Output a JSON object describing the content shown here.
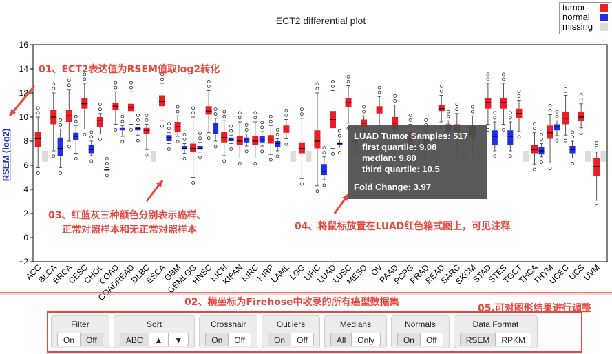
{
  "chart_data": {
    "type": "box",
    "title": "ECT2 differential plot",
    "ylabel": "RSEM (log2)",
    "xlabel": "",
    "ylim": [
      -2,
      16
    ],
    "yticks": [
      -2,
      0,
      2,
      4,
      6,
      8,
      10,
      12,
      14,
      16
    ],
    "legend_position": "top-right",
    "legend": [
      {
        "label": "tumor",
        "color": "#ee1c24"
      },
      {
        "label": "normal",
        "color": "#1f2ee6"
      },
      {
        "label": "missing",
        "color": "#dcdcdc"
      }
    ],
    "categories": [
      {
        "name": "ACC",
        "tumor": [
          5.8,
          7.5,
          8.2,
          8.8,
          10.0
        ],
        "normal": null
      },
      {
        "name": "BLCA",
        "tumor": [
          7.2,
          9.4,
          10.0,
          10.6,
          12.0
        ],
        "normal": [
          5.8,
          6.8,
          7.4,
          8.3,
          9.0
        ]
      },
      {
        "name": "BRCA",
        "tumor": [
          8.0,
          9.6,
          10.1,
          10.6,
          12.3
        ],
        "normal": [
          7.0,
          8.1,
          8.4,
          8.7,
          9.3
        ]
      },
      {
        "name": "CESC",
        "tumor": [
          9.0,
          10.7,
          11.1,
          11.6,
          12.8
        ],
        "normal": [
          6.8,
          7.0,
          7.3,
          7.7,
          8.0
        ]
      },
      {
        "name": "CHOL",
        "tumor": [
          8.6,
          9.2,
          9.7,
          10.0,
          10.3
        ],
        "normal": [
          5.6,
          5.6,
          5.6,
          5.7,
          5.8
        ]
      },
      {
        "name": "COAD",
        "tumor": [
          9.4,
          10.6,
          10.9,
          11.2,
          12.1
        ],
        "normal": [
          8.4,
          8.9,
          9.0,
          9.1,
          9.3
        ]
      },
      {
        "name": "COADREAD",
        "tumor": [
          9.4,
          10.5,
          10.8,
          11.1,
          12.1
        ],
        "normal": [
          8.5,
          8.9,
          9.05,
          9.2,
          9.4
        ]
      },
      {
        "name": "DLBC",
        "tumor": [
          7.3,
          8.6,
          8.9,
          9.1,
          9.4
        ],
        "normal": null
      },
      {
        "name": "ESCA",
        "tumor": [
          9.7,
          10.9,
          11.3,
          11.8,
          12.8
        ],
        "normal": [
          7.8,
          8.0,
          8.3,
          8.5,
          8.7
        ]
      },
      {
        "name": "GBM",
        "tumor": [
          8.4,
          8.8,
          9.2,
          9.6,
          10.1
        ],
        "normal": [
          7.0,
          7.3,
          7.4,
          7.6,
          7.8
        ]
      },
      {
        "name": "GBMLGG",
        "tumor": [
          5.0,
          7.1,
          7.4,
          7.8,
          10.0
        ],
        "normal": [
          7.1,
          7.3,
          7.4,
          7.6,
          7.9
        ]
      },
      {
        "name": "HNSC",
        "tumor": [
          8.7,
          10.2,
          10.5,
          10.9,
          12.2
        ],
        "normal": [
          8.0,
          8.6,
          9.0,
          9.5,
          9.9
        ]
      },
      {
        "name": "KICH",
        "tumor": [
          6.8,
          7.9,
          8.3,
          8.8,
          9.7
        ],
        "normal": [
          7.8,
          8.0,
          8.1,
          8.3,
          8.5
        ]
      },
      {
        "name": "KIPAN",
        "tumor": [
          6.6,
          7.7,
          8.0,
          8.4,
          9.6
        ],
        "normal": [
          7.6,
          7.9,
          8.1,
          8.3,
          8.6
        ]
      },
      {
        "name": "KIRC",
        "tumor": [
          6.6,
          7.7,
          8.0,
          8.4,
          9.6
        ],
        "normal": [
          7.6,
          7.9,
          8.1,
          8.4,
          8.8
        ]
      },
      {
        "name": "KIRP",
        "tumor": [
          6.9,
          7.8,
          8.1,
          8.5,
          9.3
        ],
        "normal": [
          7.2,
          7.5,
          7.8,
          8.0,
          8.2
        ]
      },
      {
        "name": "LAML",
        "tumor": [
          8.2,
          8.7,
          9.0,
          9.3,
          9.8
        ],
        "normal": null
      },
      {
        "name": "LGG",
        "tumor": [
          4.9,
          7.0,
          7.4,
          7.9,
          9.9
        ],
        "normal": null
      },
      {
        "name": "LIHC",
        "tumor": [
          4.3,
          7.4,
          8.0,
          8.9,
          12.0
        ],
        "normal": [
          4.8,
          5.2,
          5.5,
          6.1,
          6.7
        ]
      },
      {
        "name": "LUAD",
        "tumor": [
          7.4,
          9.08,
          9.8,
          10.5,
          12.2
        ],
        "normal": [
          7.5,
          7.7,
          7.8,
          7.9,
          8.1
        ]
      },
      {
        "name": "LUSC",
        "tumor": [
          9.5,
          10.8,
          11.2,
          11.6,
          12.6
        ],
        "normal": [
          7.6,
          7.9,
          8.0,
          8.1,
          8.3
        ]
      },
      {
        "name": "MESO",
        "tumor": [
          8.6,
          9.2,
          9.5,
          9.8,
          10.1
        ],
        "normal": null
      },
      {
        "name": "OV",
        "tumor": [
          9.3,
          10.3,
          10.6,
          10.9,
          11.7
        ],
        "normal": null
      },
      {
        "name": "PAAD",
        "tumor": [
          7.0,
          8.9,
          9.5,
          10.0,
          11.0
        ],
        "normal": null
      },
      {
        "name": "PCPG",
        "tumor": [
          6.4,
          7.7,
          8.2,
          8.8,
          9.4
        ],
        "normal": null
      },
      {
        "name": "PRAD",
        "tumor": [
          6.5,
          7.6,
          8.0,
          8.3,
          9.0
        ],
        "normal": null
      },
      {
        "name": "READ",
        "tumor": [
          9.6,
          10.5,
          10.7,
          11.0,
          11.8
        ],
        "normal": [
          8.6,
          8.8,
          9.1,
          9.4,
          9.7
        ]
      },
      {
        "name": "SARC",
        "tumor": [
          7.4,
          8.7,
          9.1,
          9.4,
          10.3
        ],
        "normal": null
      },
      {
        "name": "SKCM",
        "tumor": [
          6.8,
          8.3,
          8.8,
          9.3,
          10.1
        ],
        "normal": null
      },
      {
        "name": "STAD",
        "tumor": [
          9.4,
          10.7,
          11.2,
          11.6,
          12.8
        ],
        "normal": [
          7.2,
          7.7,
          8.4,
          8.9,
          9.6
        ]
      },
      {
        "name": "STES",
        "tumor": [
          9.4,
          10.7,
          11.2,
          11.6,
          12.8
        ],
        "normal": [
          7.2,
          7.7,
          8.4,
          8.9,
          9.6
        ]
      },
      {
        "name": "TGCT",
        "tumor": [
          8.8,
          9.9,
          10.3,
          10.7,
          11.4
        ],
        "normal": null
      },
      {
        "name": "THCA",
        "tumor": [
          6.1,
          7.0,
          7.3,
          7.7,
          8.7
        ],
        "normal": [
          6.7,
          6.9,
          7.2,
          7.5,
          7.8
        ]
      },
      {
        "name": "THYM",
        "tumor": [
          6.2,
          8.2,
          8.7,
          9.3,
          10.2
        ],
        "normal": [
          8.5,
          8.9,
          9.2,
          9.4,
          9.7
        ]
      },
      {
        "name": "UCEC",
        "tumor": [
          8.5,
          9.4,
          9.9,
          10.4,
          11.8
        ],
        "normal": [
          6.6,
          7.0,
          7.3,
          7.6,
          8.0
        ]
      },
      {
        "name": "UCS",
        "tumor": [
          9.1,
          9.7,
          10.0,
          10.4,
          11.1
        ],
        "normal": null
      },
      {
        "name": "UVM",
        "tumor": [
          3.1,
          5.1,
          5.9,
          6.6,
          7.1
        ],
        "normal": null
      }
    ],
    "tooltip": {
      "title": "LUAD Tumor Samples: 517",
      "first_quartile": "first quartile: 9.08",
      "median": "median: 9.80",
      "third_quartile": "third quartile: 10.5",
      "fold_change": "Fold Change: 3.97"
    }
  },
  "annotations": {
    "a1": "01、ECT2表达值为RSEM值取log2转化",
    "a2": "02、横坐标为Firehose中收录的所有癌型数据集",
    "a3_line1": "03、红蓝灰三种颜色分别表示癌样、",
    "a3_line2": "正常对照样本和无正常对照样本",
    "a4": "04、将鼠标放置在LUAD红色箱式图上，可见注释",
    "a5": "05.可对图形结果进行调整"
  },
  "controls": {
    "filter": {
      "title": "Filter",
      "on": "On",
      "off": "Off"
    },
    "sort": {
      "title": "Sort",
      "abc": "ABC",
      "up": "▲",
      "down": "▼"
    },
    "crosshair": {
      "title": "Crosshair",
      "on": "On",
      "off": "Off"
    },
    "outliers": {
      "title": "Outliers",
      "on": "On",
      "off": "Off"
    },
    "medians": {
      "title": "Medians",
      "all": "All",
      "only": "Only"
    },
    "normals": {
      "title": "Normals",
      "on": "On",
      "off": "Off"
    },
    "data_format": {
      "title": "Data Format",
      "rsem": "RSEM",
      "rpkm": "RPKM"
    }
  }
}
